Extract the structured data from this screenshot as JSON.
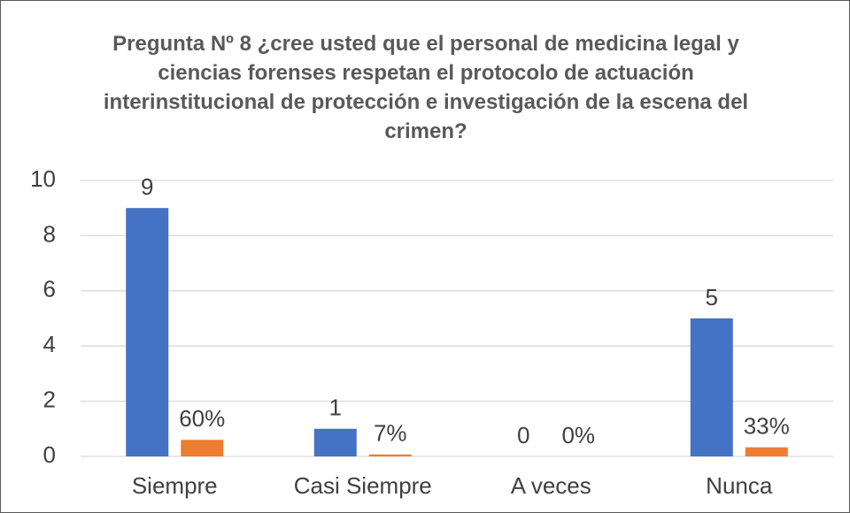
{
  "chart_data": {
    "type": "bar",
    "title": "Pregunta Nº 8 ¿cree usted que el personal de medicina legal y ciencias forenses respetan el protocolo de actuación interinstitucional de protección e investigación de la escena del crimen?",
    "categories": [
      "Siempre",
      "Casi Siempre",
      "A veces",
      "Nunca"
    ],
    "series": [
      {
        "color": "#4472c4",
        "values": [
          9,
          1,
          0,
          5
        ]
      },
      {
        "color": "#ed7d31",
        "values": [
          0.6,
          0.07,
          0,
          0.33
        ],
        "value_labels": [
          "60%",
          "7%",
          "0%",
          "33%"
        ]
      }
    ],
    "ylim": [
      0,
      10
    ],
    "yticks": [
      0,
      2,
      4,
      6,
      8,
      10
    ],
    "grid": true
  }
}
